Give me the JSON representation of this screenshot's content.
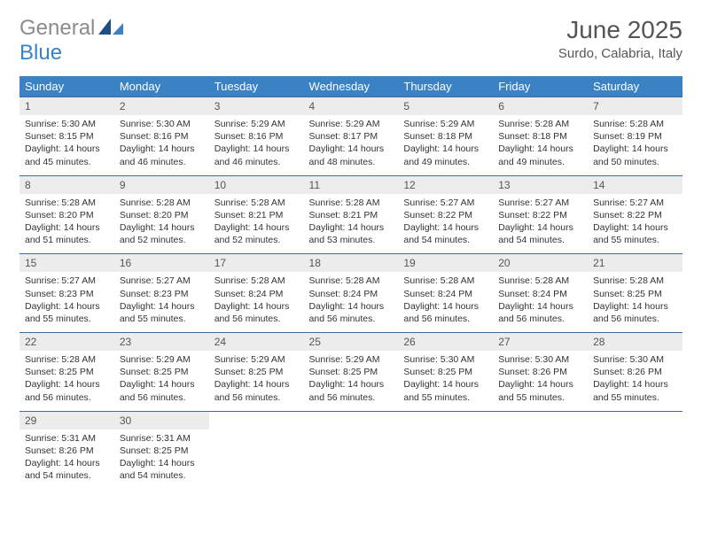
{
  "logo": {
    "part1": "General",
    "part2": "Blue"
  },
  "title": "June 2025",
  "subtitle": "Surdo, Calabria, Italy",
  "colors": {
    "header_bg": "#3b82c4",
    "header_fg": "#ffffff",
    "daynum_bg": "#ececec",
    "row_border": "#3b6ea0",
    "logo_gray": "#8b8b8b",
    "logo_blue": "#3b82c4",
    "text": "#333333"
  },
  "weekdays": [
    "Sunday",
    "Monday",
    "Tuesday",
    "Wednesday",
    "Thursday",
    "Friday",
    "Saturday"
  ],
  "weeks": [
    [
      {
        "n": "1",
        "sr": "5:30 AM",
        "ss": "8:15 PM",
        "dl": "14 hours and 45 minutes."
      },
      {
        "n": "2",
        "sr": "5:30 AM",
        "ss": "8:16 PM",
        "dl": "14 hours and 46 minutes."
      },
      {
        "n": "3",
        "sr": "5:29 AM",
        "ss": "8:16 PM",
        "dl": "14 hours and 46 minutes."
      },
      {
        "n": "4",
        "sr": "5:29 AM",
        "ss": "8:17 PM",
        "dl": "14 hours and 48 minutes."
      },
      {
        "n": "5",
        "sr": "5:29 AM",
        "ss": "8:18 PM",
        "dl": "14 hours and 49 minutes."
      },
      {
        "n": "6",
        "sr": "5:28 AM",
        "ss": "8:18 PM",
        "dl": "14 hours and 49 minutes."
      },
      {
        "n": "7",
        "sr": "5:28 AM",
        "ss": "8:19 PM",
        "dl": "14 hours and 50 minutes."
      }
    ],
    [
      {
        "n": "8",
        "sr": "5:28 AM",
        "ss": "8:20 PM",
        "dl": "14 hours and 51 minutes."
      },
      {
        "n": "9",
        "sr": "5:28 AM",
        "ss": "8:20 PM",
        "dl": "14 hours and 52 minutes."
      },
      {
        "n": "10",
        "sr": "5:28 AM",
        "ss": "8:21 PM",
        "dl": "14 hours and 52 minutes."
      },
      {
        "n": "11",
        "sr": "5:28 AM",
        "ss": "8:21 PM",
        "dl": "14 hours and 53 minutes."
      },
      {
        "n": "12",
        "sr": "5:27 AM",
        "ss": "8:22 PM",
        "dl": "14 hours and 54 minutes."
      },
      {
        "n": "13",
        "sr": "5:27 AM",
        "ss": "8:22 PM",
        "dl": "14 hours and 54 minutes."
      },
      {
        "n": "14",
        "sr": "5:27 AM",
        "ss": "8:22 PM",
        "dl": "14 hours and 55 minutes."
      }
    ],
    [
      {
        "n": "15",
        "sr": "5:27 AM",
        "ss": "8:23 PM",
        "dl": "14 hours and 55 minutes."
      },
      {
        "n": "16",
        "sr": "5:27 AM",
        "ss": "8:23 PM",
        "dl": "14 hours and 55 minutes."
      },
      {
        "n": "17",
        "sr": "5:28 AM",
        "ss": "8:24 PM",
        "dl": "14 hours and 56 minutes."
      },
      {
        "n": "18",
        "sr": "5:28 AM",
        "ss": "8:24 PM",
        "dl": "14 hours and 56 minutes."
      },
      {
        "n": "19",
        "sr": "5:28 AM",
        "ss": "8:24 PM",
        "dl": "14 hours and 56 minutes."
      },
      {
        "n": "20",
        "sr": "5:28 AM",
        "ss": "8:24 PM",
        "dl": "14 hours and 56 minutes."
      },
      {
        "n": "21",
        "sr": "5:28 AM",
        "ss": "8:25 PM",
        "dl": "14 hours and 56 minutes."
      }
    ],
    [
      {
        "n": "22",
        "sr": "5:28 AM",
        "ss": "8:25 PM",
        "dl": "14 hours and 56 minutes."
      },
      {
        "n": "23",
        "sr": "5:29 AM",
        "ss": "8:25 PM",
        "dl": "14 hours and 56 minutes."
      },
      {
        "n": "24",
        "sr": "5:29 AM",
        "ss": "8:25 PM",
        "dl": "14 hours and 56 minutes."
      },
      {
        "n": "25",
        "sr": "5:29 AM",
        "ss": "8:25 PM",
        "dl": "14 hours and 56 minutes."
      },
      {
        "n": "26",
        "sr": "5:30 AM",
        "ss": "8:25 PM",
        "dl": "14 hours and 55 minutes."
      },
      {
        "n": "27",
        "sr": "5:30 AM",
        "ss": "8:26 PM",
        "dl": "14 hours and 55 minutes."
      },
      {
        "n": "28",
        "sr": "5:30 AM",
        "ss": "8:26 PM",
        "dl": "14 hours and 55 minutes."
      }
    ],
    [
      {
        "n": "29",
        "sr": "5:31 AM",
        "ss": "8:26 PM",
        "dl": "14 hours and 54 minutes."
      },
      {
        "n": "30",
        "sr": "5:31 AM",
        "ss": "8:25 PM",
        "dl": "14 hours and 54 minutes."
      },
      null,
      null,
      null,
      null,
      null
    ]
  ],
  "labels": {
    "sunrise": "Sunrise:",
    "sunset": "Sunset:",
    "daylight": "Daylight:"
  }
}
